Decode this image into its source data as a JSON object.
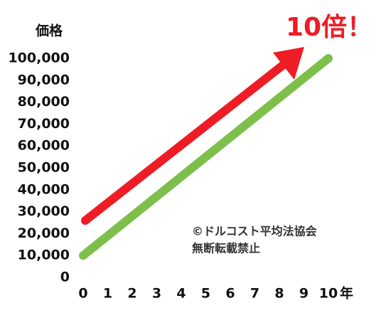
{
  "chart_data": {
    "type": "line",
    "ylabel": "価格",
    "xlabel": "年",
    "annotations": [
      "10倍！",
      "©ドルコスト平均法協会",
      "無断転載禁止"
    ],
    "x": [
      0,
      10
    ],
    "values": [
      10000,
      100000
    ],
    "color": "#7dbf4a",
    "xlim": [
      0,
      10
    ],
    "xticks": [
      0,
      1,
      2,
      3,
      4,
      5,
      6,
      7,
      8,
      9,
      10
    ],
    "ylim": [
      0,
      100000
    ],
    "yticks": [
      0,
      {
        "value": 10000,
        "label": "10,000"
      },
      {
        "value": 20000,
        "label": "20,000"
      },
      {
        "value": 30000,
        "label": "30,000"
      },
      {
        "value": 40000,
        "label": "40,000"
      },
      {
        "value": 50000,
        "label": "50,000"
      },
      {
        "value": 60000,
        "label": "60,000"
      },
      {
        "value": 70000,
        "label": "70,000"
      },
      {
        "value": 80000,
        "label": "80,000"
      },
      {
        "value": 90000,
        "label": "90,000"
      },
      {
        "value": 100000,
        "label": "100,000"
      }
    ],
    "grid": false
  }
}
